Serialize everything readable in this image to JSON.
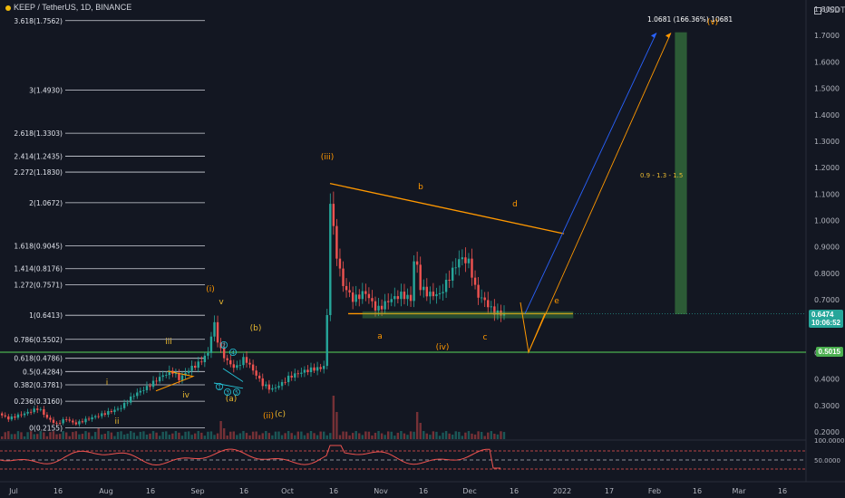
{
  "header": {
    "title": "KEEP / TetherUS, 1D, BINANCE",
    "currency": "USDT"
  },
  "chart_data": {
    "type": "candlestick",
    "title": "KEEP / TetherUS, 1D, BINANCE",
    "x_labels": [
      "Jul",
      "16",
      "Aug",
      "16",
      "Sep",
      "16",
      "Oct",
      "16",
      "Nov",
      "16",
      "Dec",
      "16",
      "2022",
      "17",
      "Feb",
      "16",
      "Mar",
      "16"
    ],
    "y_ticks": [
      "1.8000",
      "1.7000",
      "1.6000",
      "1.5000",
      "1.4000",
      "1.3000",
      "1.2000",
      "1.1000",
      "1.0000",
      "0.9000",
      "0.8000",
      "0.7000",
      "0.6000",
      "0.5000",
      "0.4000",
      "0.3000",
      "0.2000"
    ],
    "last_price": "0.6474",
    "countdown": "10:06:52",
    "horizontal_level": "0.5015",
    "fib_levels": [
      {
        "label": "3.618(1.7562)",
        "value": 1.7562
      },
      {
        "label": "3(1.4930)",
        "value": 1.493
      },
      {
        "label": "2.618(1.3303)",
        "value": 1.3303
      },
      {
        "label": "2.414(1.2435)",
        "value": 1.2435
      },
      {
        "label": "2.272(1.1830)",
        "value": 1.183
      },
      {
        "label": "2(1.0672)",
        "value": 1.0672
      },
      {
        "label": "1.618(0.9045)",
        "value": 0.9045
      },
      {
        "label": "1.414(0.8176)",
        "value": 0.8176
      },
      {
        "label": "1.272(0.7571)",
        "value": 0.7571
      },
      {
        "label": "1(0.6413)",
        "value": 0.6413
      },
      {
        "label": "0.786(0.5502)",
        "value": 0.5502
      },
      {
        "label": "0.618(0.4786)",
        "value": 0.4786
      },
      {
        "label": "0.5(0.4284)",
        "value": 0.4284
      },
      {
        "label": "0.382(0.3781)",
        "value": 0.3781
      },
      {
        "label": "0.236(0.3160)",
        "value": 0.316
      },
      {
        "label": "0(0.2155)",
        "value": 0.2155
      }
    ],
    "wave_labels": [
      {
        "text": "i",
        "color": "#e8b830"
      },
      {
        "text": "ii",
        "color": "#e8b830"
      },
      {
        "text": "iii",
        "color": "#e8b830"
      },
      {
        "text": "iv",
        "color": "#e8b830"
      },
      {
        "text": "v",
        "color": "#e8b830"
      },
      {
        "text": "(i)",
        "color": "#ff9800"
      },
      {
        "text": "(ii)",
        "color": "#ff9800"
      },
      {
        "text": "(iii)",
        "color": "#ff9800"
      },
      {
        "text": "(iv)",
        "color": "#ff9800"
      },
      {
        "text": "(v)",
        "color": "#ff9800"
      },
      {
        "text": "(a)",
        "color": "#e8b830"
      },
      {
        "text": "(b)",
        "color": "#e8b830"
      },
      {
        "text": "(c)",
        "color": "#e8b830"
      },
      {
        "text": "a",
        "color": "#ff9800"
      },
      {
        "text": "b",
        "color": "#ff9800"
      },
      {
        "text": "c",
        "color": "#ff9800"
      },
      {
        "text": "d",
        "color": "#ff9800"
      },
      {
        "text": "e",
        "color": "#ff9800"
      }
    ],
    "circled_labels": [
      "1",
      "2",
      "3",
      "4",
      "5"
    ],
    "target_label": "1.0681 (166.36%) 10681",
    "range_note": "0.9 - 1.3 - 1.5",
    "rsi_ticks": [
      "100.0000",
      "50.0000"
    ],
    "colors": {
      "background": "#131722",
      "up": "#26a69a",
      "down": "#ef5350",
      "fib_line": "#d1d4dc",
      "wave_small": "#e8b830",
      "wave_large": "#ff9800",
      "triangle": "#ff9800",
      "projection_blue": "#2962ff",
      "target_green": "#4caf50",
      "horizontal_level": "#4caf50",
      "rsi": "#ef5350"
    },
    "grid": false
  }
}
